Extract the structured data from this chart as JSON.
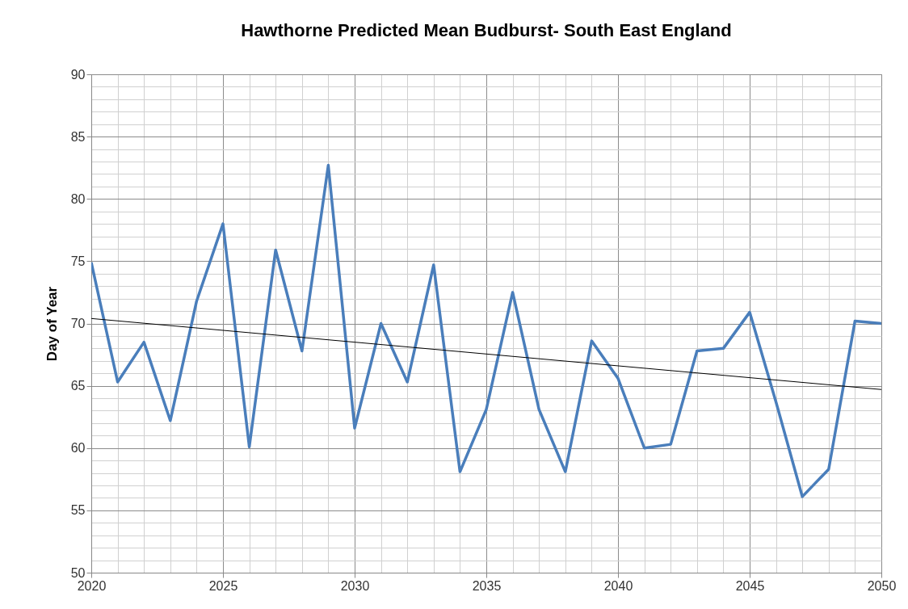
{
  "chart_data": {
    "type": "line",
    "title": "Hawthorne Predicted Mean Budburst- South East England",
    "ylabel": "Day of Year",
    "x": [
      2020,
      2021,
      2022,
      2023,
      2024,
      2025,
      2026,
      2027,
      2028,
      2029,
      2030,
      2031,
      2032,
      2033,
      2034,
      2035,
      2036,
      2037,
      2038,
      2039,
      2040,
      2041,
      2042,
      2043,
      2044,
      2045,
      2046,
      2047,
      2048,
      2049,
      2050
    ],
    "series": [
      {
        "color": "#4a7ebb",
        "values": [
          74.9,
          65.3,
          68.5,
          62.2,
          71.8,
          78.0,
          60.1,
          75.9,
          67.8,
          82.7,
          61.6,
          70.0,
          65.3,
          74.7,
          58.1,
          63.1,
          72.5,
          63.1,
          58.1,
          68.6,
          65.6,
          60.0,
          60.3,
          67.8,
          68.0,
          70.9,
          63.7,
          56.1,
          58.3,
          70.2,
          70.0
        ]
      },
      {
        "type": "line",
        "color": "#000000",
        "x": [
          2020,
          2050
        ],
        "values": [
          70.4,
          64.7
        ]
      }
    ],
    "xlim": [
      2020,
      2050
    ],
    "xticks": [
      2020,
      2025,
      2030,
      2035,
      2040,
      2045,
      2050
    ],
    "ylim": [
      50,
      90
    ],
    "yticks": [
      50,
      55,
      60,
      65,
      70,
      75,
      80,
      85,
      90
    ],
    "grid": true,
    "marker": "none",
    "line_style": "solid"
  }
}
